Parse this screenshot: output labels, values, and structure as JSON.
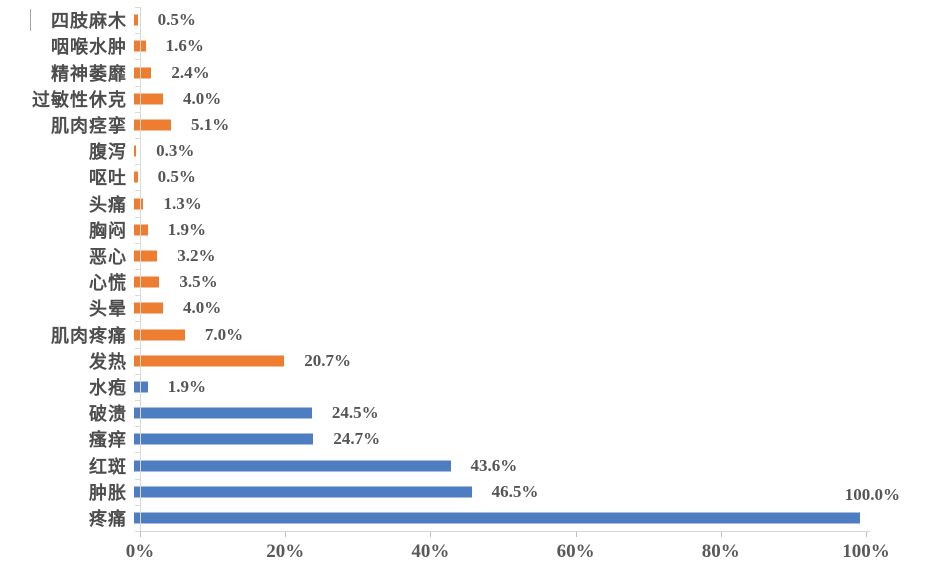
{
  "chart_data": {
    "type": "bar",
    "orientation": "horizontal",
    "title": "",
    "xlabel": "",
    "ylabel": "",
    "xlim": [
      0,
      100
    ],
    "x_tick_labels": [
      "0%",
      "20%",
      "40%",
      "60%",
      "80%",
      "100%"
    ],
    "x_tick_values": [
      0,
      20,
      40,
      60,
      80,
      100
    ],
    "grid": false,
    "legend": false,
    "colors": {
      "orange": "#ed7d31",
      "blue": "#4e7dc1"
    },
    "points": [
      {
        "category": "四肢麻木",
        "value": 0.5,
        "display": "0.5%",
        "color": "#ed7d31"
      },
      {
        "category": "咽喉水肿",
        "value": 1.6,
        "display": "1.6%",
        "color": "#ed7d31"
      },
      {
        "category": "精神萎靡",
        "value": 2.4,
        "display": "2.4%",
        "color": "#ed7d31"
      },
      {
        "category": "过敏性休克",
        "value": 4.0,
        "display": "4.0%",
        "color": "#ed7d31"
      },
      {
        "category": "肌肉痉挛",
        "value": 5.1,
        "display": "5.1%",
        "color": "#ed7d31"
      },
      {
        "category": "腹泻",
        "value": 0.3,
        "display": "0.3%",
        "color": "#ed7d31"
      },
      {
        "category": "呕吐",
        "value": 0.5,
        "display": "0.5%",
        "color": "#ed7d31"
      },
      {
        "category": "头痛",
        "value": 1.3,
        "display": "1.3%",
        "color": "#ed7d31"
      },
      {
        "category": "胸闷",
        "value": 1.9,
        "display": "1.9%",
        "color": "#ed7d31"
      },
      {
        "category": "恶心",
        "value": 3.2,
        "display": "3.2%",
        "color": "#ed7d31"
      },
      {
        "category": "心慌",
        "value": 3.5,
        "display": "3.5%",
        "color": "#ed7d31"
      },
      {
        "category": "头晕",
        "value": 4.0,
        "display": "4.0%",
        "color": "#ed7d31"
      },
      {
        "category": "肌肉疼痛",
        "value": 7.0,
        "display": "7.0%",
        "color": "#ed7d31"
      },
      {
        "category": "发热",
        "value": 20.7,
        "display": "20.7%",
        "color": "#ed7d31"
      },
      {
        "category": "水疱",
        "value": 1.9,
        "display": "1.9%",
        "color": "#4e7dc1"
      },
      {
        "category": "破溃",
        "value": 24.5,
        "display": "24.5%",
        "color": "#4e7dc1"
      },
      {
        "category": "瘙痒",
        "value": 24.7,
        "display": "24.7%",
        "color": "#4e7dc1"
      },
      {
        "category": "红斑",
        "value": 43.6,
        "display": "43.6%",
        "color": "#4e7dc1"
      },
      {
        "category": "肿胀",
        "value": 46.5,
        "display": "46.5%",
        "color": "#4e7dc1"
      },
      {
        "category": "疼痛",
        "value": 100.0,
        "display": "100.0%",
        "color": "#4e7dc1",
        "label_raised": true
      }
    ]
  }
}
